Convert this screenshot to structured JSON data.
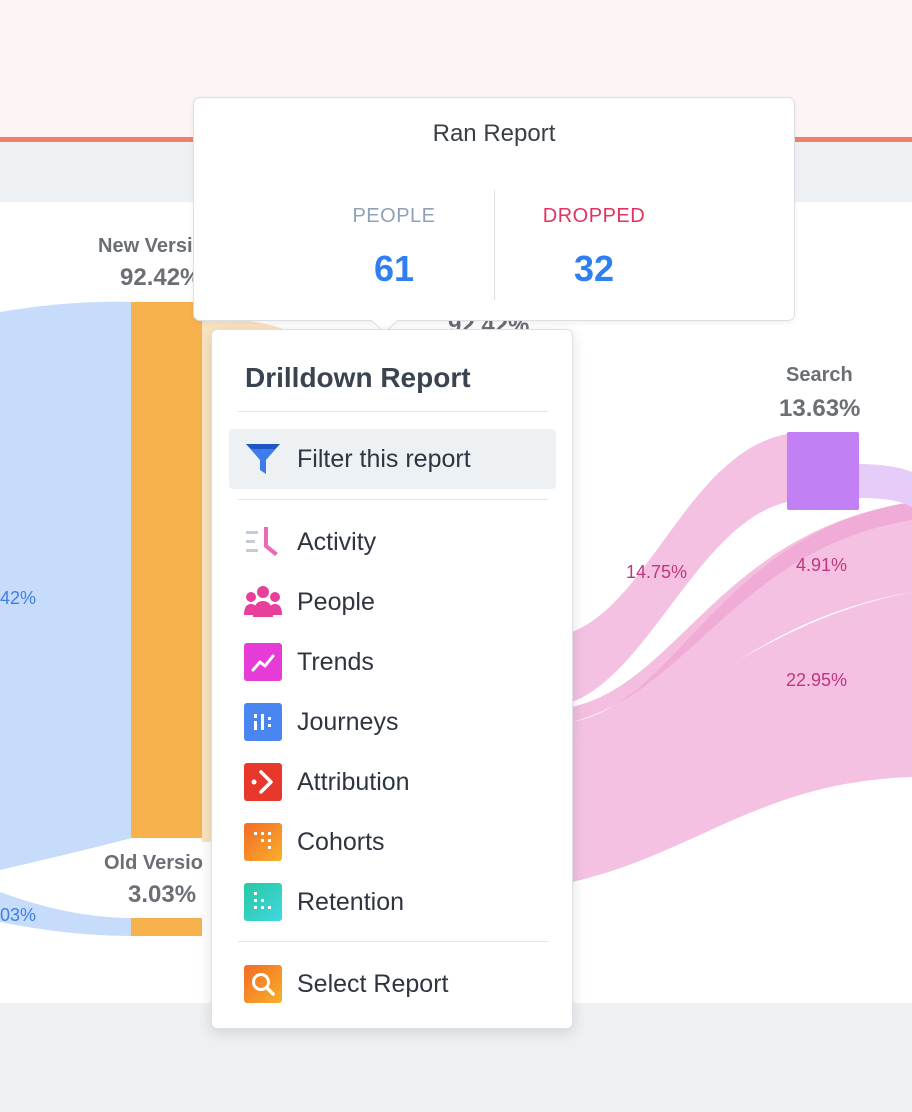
{
  "flow": {
    "left_flow_pct": "42%",
    "bottom_flow_pct": "03%",
    "new_version": {
      "label": "New Versi",
      "pct": "92.42%"
    },
    "hidden_pct": "92.42%",
    "old_version": {
      "label": "Old Versio",
      "pct": "3.03%"
    },
    "search": {
      "label": "Search",
      "pct": "13.63%"
    },
    "flow_pcts": [
      "14.75%",
      "4.91%",
      "22.95%"
    ]
  },
  "tooltip": {
    "title": "Ran Report",
    "people_label": "PEOPLE",
    "people_value": "61",
    "dropped_label": "DROPPED",
    "dropped_value": "32"
  },
  "menu": {
    "title": "Drilldown Report",
    "filter_label": "Filter this report",
    "items": [
      {
        "label": "Activity"
      },
      {
        "label": "People"
      },
      {
        "label": "Trends"
      },
      {
        "label": "Journeys"
      },
      {
        "label": "Attribution"
      },
      {
        "label": "Cohorts"
      },
      {
        "label": "Retention"
      }
    ],
    "select_label": "Select Report"
  },
  "colors": {
    "accent_blue": "#2e7ff0",
    "dropped_red": "#e0335f",
    "flow_blue": "#c7dcfb",
    "flow_pink": "#f4c1e2",
    "node_orange": "#f7b24e",
    "node_purple": "#c380f5"
  }
}
